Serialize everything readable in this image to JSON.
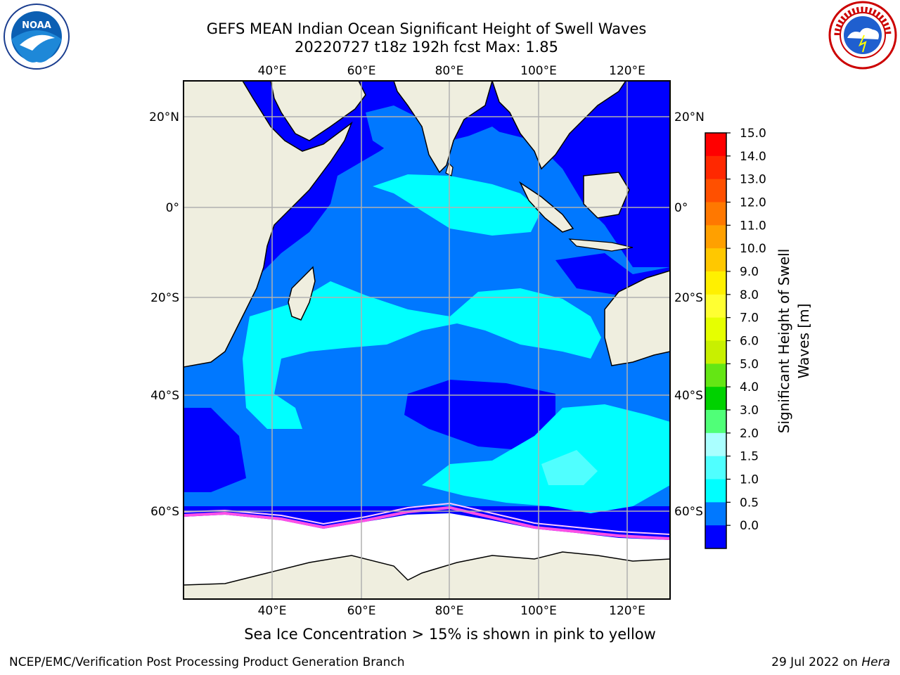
{
  "title_line1": "GEFS MEAN Indian Ocean Significant Height of Swell Waves",
  "title_line2": "20220727 t18z 192h fcst   Max: 1.85",
  "caption": "Sea Ice Concentration > 15% is shown in pink to yellow",
  "footer_left": "NCEP/EMC/Verification Post Processing Product Generation Branch",
  "footer_right_date": "29 Jul 2022 on ",
  "footer_right_host": "Hera",
  "logos": {
    "left": "noaa-logo",
    "right": "national-weather-service-logo"
  },
  "map": {
    "lon_ticks": [
      "40°E",
      "60°E",
      "80°E",
      "100°E",
      "120°E"
    ],
    "lat_ticks": [
      "20°N",
      "0°",
      "20°S",
      "40°S",
      "60°S"
    ],
    "grid": true,
    "colors": {
      "land": "#efeedf",
      "ice": "#ffffff",
      "grid": "#b0b0b0"
    }
  },
  "colorbar": {
    "label_line1": "Significant Height of Swell",
    "label_line2": "Waves [m]",
    "ticks": [
      "15.0",
      "14.0",
      "13.0",
      "12.0",
      "11.0",
      "10.0",
      "9.0",
      "8.0",
      "7.0",
      "6.0",
      "5.0",
      "4.0",
      "3.0",
      "2.0",
      "1.5",
      "1.0",
      "0.5",
      "0.0"
    ],
    "colors_top_to_bottom": [
      "#ff0000",
      "#ff2800",
      "#ff5000",
      "#ff7800",
      "#ffa000",
      "#ffc800",
      "#fff000",
      "#ffff32",
      "#e6ff00",
      "#c8f000",
      "#64e614",
      "#00d200",
      "#50ff78",
      "#aaffff",
      "#50ffff",
      "#00ffff",
      "#0078ff",
      "#0000ff"
    ]
  }
}
